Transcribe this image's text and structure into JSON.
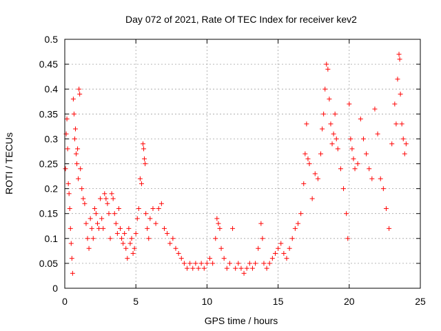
{
  "chart_data": {
    "type": "scatter",
    "title": "Day 072 of 2021, Rate Of TEC Index for receiver kev2",
    "xlabel": "GPS time / hours",
    "ylabel": "ROTI / TECUs",
    "xlim": [
      0,
      25
    ],
    "ylim": [
      0,
      0.5
    ],
    "x_ticks": [
      0,
      5,
      10,
      15,
      20,
      25
    ],
    "y_ticks": [
      0,
      0.05,
      0.1,
      0.15,
      0.2,
      0.25,
      0.3,
      0.35,
      0.4,
      0.45,
      0.5
    ],
    "x_tick_labels": [
      "0",
      "5",
      "10",
      "15",
      "20",
      "25"
    ],
    "y_tick_labels": [
      "0",
      "0.05",
      "0.1",
      "0.15",
      "0.2",
      "0.25",
      "0.3",
      "0.35",
      "0.4",
      "0.45",
      "0.5"
    ],
    "grid": true,
    "marker": "+",
    "color": "#ff0000",
    "series": [
      {
        "name": "ROTI",
        "points": [
          [
            0.05,
            0.24
          ],
          [
            0.1,
            0.31
          ],
          [
            0.15,
            0.34
          ],
          [
            0.2,
            0.28
          ],
          [
            0.25,
            0.21
          ],
          [
            0.3,
            0.19
          ],
          [
            0.35,
            0.16
          ],
          [
            0.4,
            0.12
          ],
          [
            0.45,
            0.09
          ],
          [
            0.5,
            0.06
          ],
          [
            0.55,
            0.03
          ],
          [
            0.6,
            0.38
          ],
          [
            0.65,
            0.35
          ],
          [
            0.7,
            0.3
          ],
          [
            0.75,
            0.32
          ],
          [
            0.8,
            0.27
          ],
          [
            0.85,
            0.25
          ],
          [
            0.9,
            0.28
          ],
          [
            0.95,
            0.22
          ],
          [
            1.0,
            0.4
          ],
          [
            1.05,
            0.39
          ],
          [
            1.1,
            0.24
          ],
          [
            1.2,
            0.2
          ],
          [
            1.3,
            0.18
          ],
          [
            1.4,
            0.17
          ],
          [
            1.5,
            0.13
          ],
          [
            1.6,
            0.1
          ],
          [
            1.7,
            0.08
          ],
          [
            1.8,
            0.14
          ],
          [
            1.9,
            0.12
          ],
          [
            2.0,
            0.1
          ],
          [
            2.1,
            0.16
          ],
          [
            2.2,
            0.15
          ],
          [
            2.3,
            0.13
          ],
          [
            2.4,
            0.12
          ],
          [
            2.5,
            0.18
          ],
          [
            2.6,
            0.14
          ],
          [
            2.7,
            0.12
          ],
          [
            2.8,
            0.19
          ],
          [
            2.9,
            0.18
          ],
          [
            3.0,
            0.17
          ],
          [
            3.1,
            0.15
          ],
          [
            3.2,
            0.1
          ],
          [
            3.3,
            0.19
          ],
          [
            3.4,
            0.18
          ],
          [
            3.5,
            0.15
          ],
          [
            3.6,
            0.13
          ],
          [
            3.7,
            0.11
          ],
          [
            3.8,
            0.16
          ],
          [
            3.9,
            0.12
          ],
          [
            4.0,
            0.1
          ],
          [
            4.1,
            0.09
          ],
          [
            4.2,
            0.11
          ],
          [
            4.3,
            0.08
          ],
          [
            4.4,
            0.06
          ],
          [
            4.5,
            0.12
          ],
          [
            4.6,
            0.09
          ],
          [
            4.7,
            0.1
          ],
          [
            4.8,
            0.07
          ],
          [
            4.9,
            0.08
          ],
          [
            5.0,
            0.11
          ],
          [
            5.1,
            0.14
          ],
          [
            5.2,
            0.16
          ],
          [
            5.3,
            0.22
          ],
          [
            5.4,
            0.21
          ],
          [
            5.5,
            0.29
          ],
          [
            5.55,
            0.28
          ],
          [
            5.6,
            0.26
          ],
          [
            5.65,
            0.25
          ],
          [
            5.7,
            0.15
          ],
          [
            5.8,
            0.12
          ],
          [
            5.9,
            0.1
          ],
          [
            6.0,
            0.14
          ],
          [
            6.2,
            0.16
          ],
          [
            6.4,
            0.13
          ],
          [
            6.6,
            0.16
          ],
          [
            6.8,
            0.17
          ],
          [
            7.0,
            0.12
          ],
          [
            7.2,
            0.11
          ],
          [
            7.4,
            0.09
          ],
          [
            7.6,
            0.1
          ],
          [
            7.8,
            0.08
          ],
          [
            8.0,
            0.07
          ],
          [
            8.2,
            0.06
          ],
          [
            8.4,
            0.05
          ],
          [
            8.6,
            0.04
          ],
          [
            8.8,
            0.05
          ],
          [
            9.0,
            0.04
          ],
          [
            9.2,
            0.05
          ],
          [
            9.4,
            0.04
          ],
          [
            9.6,
            0.05
          ],
          [
            9.8,
            0.04
          ],
          [
            10.0,
            0.05
          ],
          [
            10.2,
            0.06
          ],
          [
            10.4,
            0.05
          ],
          [
            10.6,
            0.1
          ],
          [
            10.7,
            0.14
          ],
          [
            10.8,
            0.13
          ],
          [
            10.9,
            0.12
          ],
          [
            11.0,
            0.08
          ],
          [
            11.2,
            0.06
          ],
          [
            11.4,
            0.04
          ],
          [
            11.6,
            0.05
          ],
          [
            11.8,
            0.12
          ],
          [
            12.0,
            0.04
          ],
          [
            12.2,
            0.05
          ],
          [
            12.4,
            0.04
          ],
          [
            12.6,
            0.03
          ],
          [
            12.8,
            0.04
          ],
          [
            13.0,
            0.05
          ],
          [
            13.2,
            0.04
          ],
          [
            13.4,
            0.05
          ],
          [
            13.6,
            0.08
          ],
          [
            13.8,
            0.13
          ],
          [
            13.9,
            0.1
          ],
          [
            14.0,
            0.05
          ],
          [
            14.2,
            0.04
          ],
          [
            14.4,
            0.05
          ],
          [
            14.6,
            0.06
          ],
          [
            14.8,
            0.07
          ],
          [
            15.0,
            0.08
          ],
          [
            15.2,
            0.09
          ],
          [
            15.4,
            0.07
          ],
          [
            15.6,
            0.06
          ],
          [
            15.8,
            0.08
          ],
          [
            16.0,
            0.1
          ],
          [
            16.2,
            0.12
          ],
          [
            16.4,
            0.13
          ],
          [
            16.6,
            0.15
          ],
          [
            16.8,
            0.21
          ],
          [
            16.9,
            0.27
          ],
          [
            17.0,
            0.33
          ],
          [
            17.1,
            0.26
          ],
          [
            17.2,
            0.25
          ],
          [
            17.4,
            0.18
          ],
          [
            17.6,
            0.23
          ],
          [
            17.8,
            0.22
          ],
          [
            18.0,
            0.27
          ],
          [
            18.1,
            0.32
          ],
          [
            18.2,
            0.35
          ],
          [
            18.3,
            0.4
          ],
          [
            18.4,
            0.45
          ],
          [
            18.5,
            0.44
          ],
          [
            18.6,
            0.38
          ],
          [
            18.7,
            0.33
          ],
          [
            18.8,
            0.29
          ],
          [
            18.9,
            0.31
          ],
          [
            19.0,
            0.35
          ],
          [
            19.1,
            0.3
          ],
          [
            19.2,
            0.28
          ],
          [
            19.4,
            0.24
          ],
          [
            19.6,
            0.2
          ],
          [
            19.8,
            0.15
          ],
          [
            19.9,
            0.1
          ],
          [
            20.0,
            0.37
          ],
          [
            20.1,
            0.3
          ],
          [
            20.2,
            0.28
          ],
          [
            20.3,
            0.26
          ],
          [
            20.4,
            0.24
          ],
          [
            20.6,
            0.25
          ],
          [
            20.8,
            0.34
          ],
          [
            21.0,
            0.3
          ],
          [
            21.2,
            0.27
          ],
          [
            21.4,
            0.24
          ],
          [
            21.6,
            0.22
          ],
          [
            21.8,
            0.36
          ],
          [
            22.0,
            0.31
          ],
          [
            22.2,
            0.22
          ],
          [
            22.4,
            0.2
          ],
          [
            22.6,
            0.16
          ],
          [
            22.8,
            0.12
          ],
          [
            23.0,
            0.29
          ],
          [
            23.2,
            0.37
          ],
          [
            23.3,
            0.33
          ],
          [
            23.4,
            0.42
          ],
          [
            23.5,
            0.47
          ],
          [
            23.55,
            0.46
          ],
          [
            23.6,
            0.39
          ],
          [
            23.7,
            0.33
          ],
          [
            23.8,
            0.3
          ],
          [
            23.9,
            0.27
          ],
          [
            24.0,
            0.29
          ]
        ]
      }
    ]
  }
}
